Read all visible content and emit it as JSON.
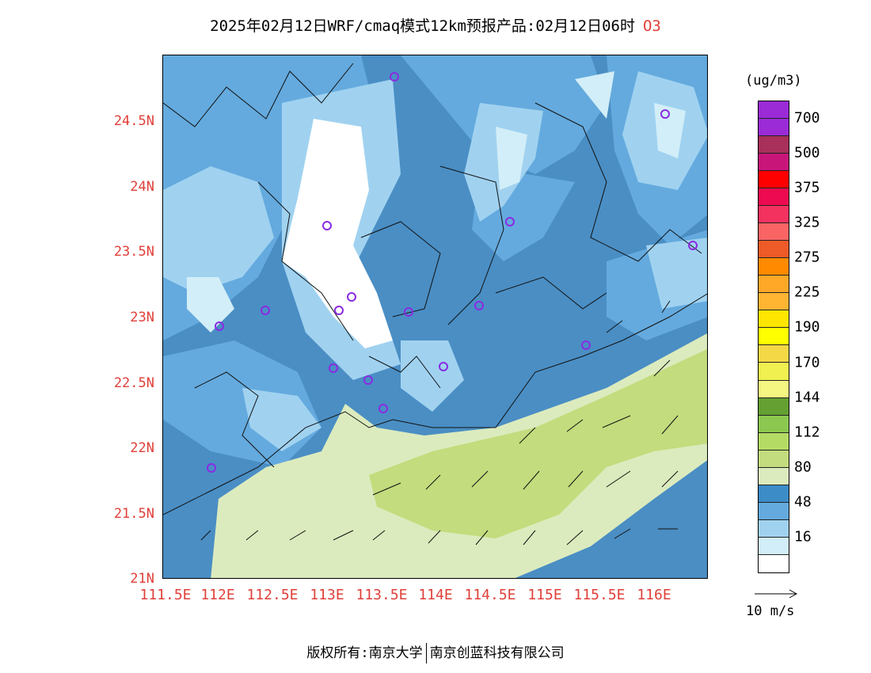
{
  "title": {
    "main": "2025年02月12日WRF/cmaq模式12km预报产品:02月12日06时",
    "species": "O3"
  },
  "colors": {
    "accent_red": "#e0403a",
    "station_marker": "#8a2be2",
    "land_water_low": "#4a8ec4"
  },
  "axes": {
    "y_ticks": [
      "24.5N",
      "24N",
      "23.5N",
      "23N",
      "22.5N",
      "22N",
      "21.5N",
      "21N"
    ],
    "x_ticks": [
      "111.5E",
      "112E",
      "112.5E",
      "113E",
      "113.5E",
      "114E",
      "114.5E",
      "115E",
      "115.5E",
      "116E"
    ]
  },
  "legend": {
    "unit": "(ug/m3)",
    "colors": [
      "#9a2bd6",
      "#9a2bd6",
      "#a8305a",
      "#c8157a",
      "#ff0000",
      "#ee0a50",
      "#f33260",
      "#fa6464",
      "#ee5a28",
      "#ff8a00",
      "#ffa828",
      "#ffb432",
      "#ffe600",
      "#ffff00",
      "#f5d846",
      "#f0f050",
      "#f5f582",
      "#64a032",
      "#8cc850",
      "#b4dc64",
      "#c3dc7d",
      "#dcebbe",
      "#3c8cc8",
      "#64aade",
      "#a0d2f0",
      "#d2eef8",
      "#ffffff"
    ],
    "labels": [
      "700",
      "500",
      "375",
      "325",
      "275",
      "225",
      "190",
      "170",
      "144",
      "112",
      "80",
      "48",
      "16"
    ],
    "vector_label": "10 m/s"
  },
  "footer": {
    "left": "版权所有:南京大学",
    "right": "南京创蓝科技有限公司"
  }
}
